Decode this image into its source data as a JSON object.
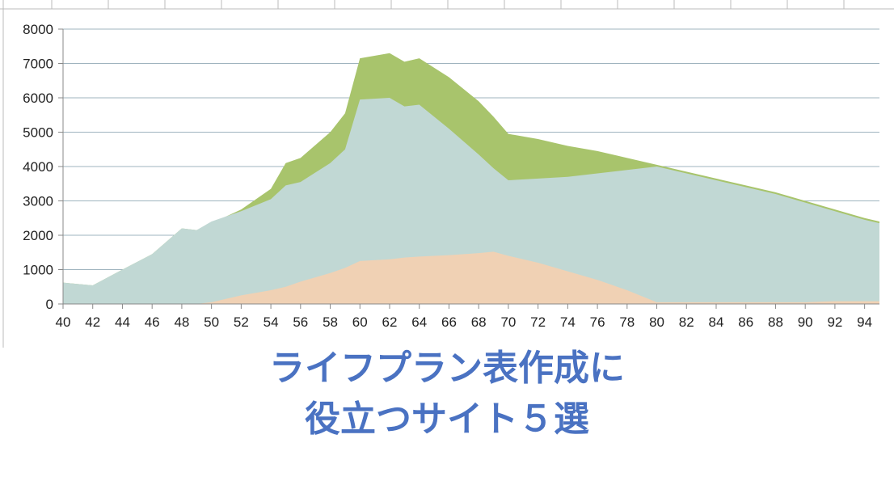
{
  "chart_data": {
    "type": "area",
    "x": [
      40,
      42,
      44,
      46,
      48,
      49,
      50,
      52,
      54,
      55,
      56,
      58,
      59,
      60,
      62,
      63,
      64,
      66,
      68,
      69,
      70,
      72,
      74,
      76,
      78,
      80,
      82,
      84,
      86,
      88,
      90,
      92,
      94,
      95
    ],
    "series": [
      {
        "color": "#a8c46c",
        "values": [
          620,
          540,
          1000,
          1450,
          2200,
          2150,
          2350,
          2750,
          3350,
          4100,
          4250,
          5000,
          5550,
          7150,
          7300,
          7050,
          7150,
          6600,
          5900,
          5450,
          4950,
          4800,
          4600,
          4450,
          4250,
          4050,
          3850,
          3650,
          3450,
          3250,
          3000,
          2750,
          2500,
          2400
        ]
      },
      {
        "color": "#c1d8d4",
        "values": [
          620,
          540,
          1000,
          1450,
          2200,
          2150,
          2400,
          2700,
          3050,
          3450,
          3550,
          4100,
          4500,
          5950,
          6000,
          5750,
          5800,
          5100,
          4350,
          3950,
          3600,
          3650,
          3700,
          3800,
          3900,
          4000,
          3800,
          3600,
          3400,
          3200,
          2950,
          2700,
          2450,
          2350
        ]
      },
      {
        "color": "#f0d1b4",
        "values": [
          0,
          0,
          0,
          0,
          0,
          0,
          50,
          250,
          400,
          500,
          650,
          900,
          1050,
          1250,
          1300,
          1350,
          1380,
          1420,
          1480,
          1520,
          1400,
          1200,
          950,
          700,
          400,
          50,
          50,
          50,
          50,
          50,
          50,
          80,
          80,
          80
        ]
      }
    ],
    "xlim": [
      40,
      95
    ],
    "ylim": [
      0,
      8000
    ],
    "xticks": [
      40,
      42,
      44,
      46,
      48,
      50,
      52,
      54,
      56,
      58,
      60,
      62,
      64,
      66,
      68,
      70,
      72,
      74,
      76,
      78,
      80,
      82,
      84,
      86,
      88,
      90,
      92,
      94
    ],
    "yticks": [
      0,
      1000,
      2000,
      3000,
      4000,
      5000,
      6000,
      7000,
      8000
    ],
    "grid": true,
    "headline": [
      "ライフプラン表作成に",
      "役立つサイト５選"
    ]
  }
}
